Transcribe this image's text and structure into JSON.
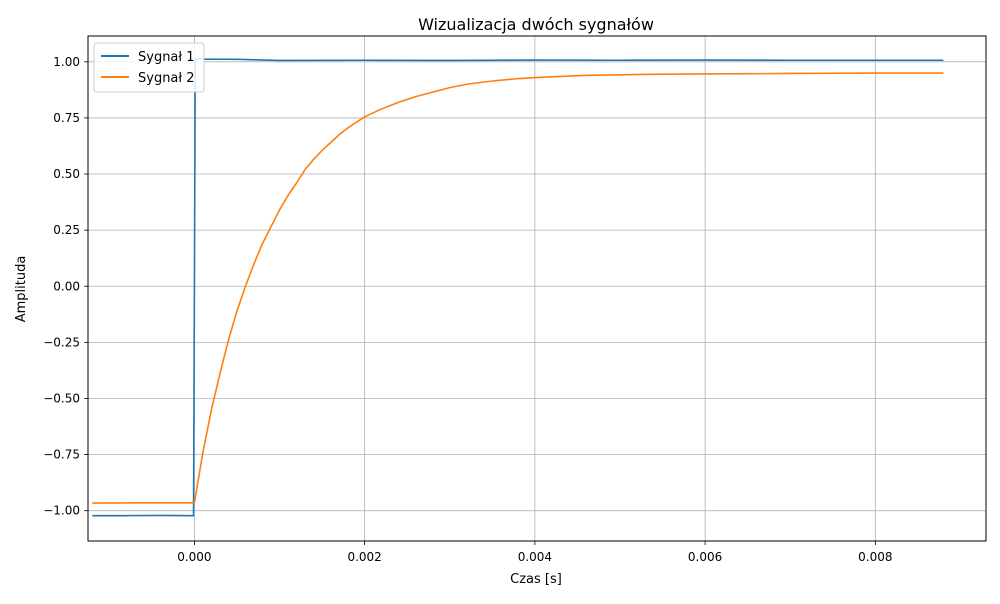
{
  "chart_data": {
    "type": "line",
    "title": "Wizualizacja dwóch sygnałów",
    "xlabel": "Czas [s]",
    "ylabel": "Amplituda",
    "xlim": [
      -0.00125,
      0.0093
    ],
    "ylim": [
      -1.135,
      1.115
    ],
    "xticks": [
      0.0,
      0.002,
      0.004,
      0.006,
      0.008
    ],
    "xtick_labels": [
      "0.000",
      "0.002",
      "0.004",
      "0.006",
      "0.008"
    ],
    "yticks": [
      -1.0,
      -0.75,
      -0.5,
      -0.25,
      0.0,
      0.25,
      0.5,
      0.75,
      1.0
    ],
    "ytick_labels": [
      "−1.00",
      "−0.75",
      "−0.50",
      "−0.25",
      "0.00",
      "0.25",
      "0.50",
      "0.75",
      "1.00"
    ],
    "grid": true,
    "legend_position": "top-left",
    "series": [
      {
        "name": "Sygnał 1",
        "color": "#1f77b4",
        "x": [
          -0.0012,
          -0.0008,
          -0.0004,
          -1e-05,
          1e-05,
          2e-05,
          0.0005,
          0.001,
          0.002,
          0.003,
          0.004,
          0.005,
          0.006,
          0.007,
          0.008,
          0.0088
        ],
        "y": [
          -1.022,
          -1.022,
          -1.021,
          -1.022,
          1.0,
          1.012,
          1.011,
          1.006,
          1.007,
          1.006,
          1.008,
          1.007,
          1.008,
          1.007,
          1.007,
          1.007
        ]
      },
      {
        "name": "Sygnał 2",
        "color": "#ff7f0e",
        "x": [
          -0.0012,
          -0.0006,
          0.0,
          0.0001,
          0.0002,
          0.0003,
          0.0004,
          0.0005,
          0.0006,
          0.0007,
          0.0008,
          0.0009,
          0.001,
          0.0011,
          0.0012,
          0.0013,
          0.0014,
          0.0015,
          0.0016,
          0.0017,
          0.0018,
          0.0019,
          0.002,
          0.0022,
          0.0024,
          0.0026,
          0.0028,
          0.003,
          0.0032,
          0.0034,
          0.0036,
          0.0038,
          0.004,
          0.0043,
          0.0046,
          0.005,
          0.0055,
          0.006,
          0.0065,
          0.007,
          0.0075,
          0.008,
          0.0085,
          0.0088
        ],
        "y": [
          -0.966,
          -0.965,
          -0.965,
          -0.74,
          -0.55,
          -0.39,
          -0.24,
          -0.11,
          0.0,
          0.1,
          0.19,
          0.265,
          0.34,
          0.405,
          0.46,
          0.52,
          0.565,
          0.605,
          0.64,
          0.675,
          0.705,
          0.73,
          0.755,
          0.79,
          0.82,
          0.845,
          0.865,
          0.885,
          0.9,
          0.91,
          0.918,
          0.925,
          0.93,
          0.935,
          0.94,
          0.942,
          0.945,
          0.946,
          0.947,
          0.948,
          0.949,
          0.95,
          0.95,
          0.95
        ]
      }
    ]
  }
}
